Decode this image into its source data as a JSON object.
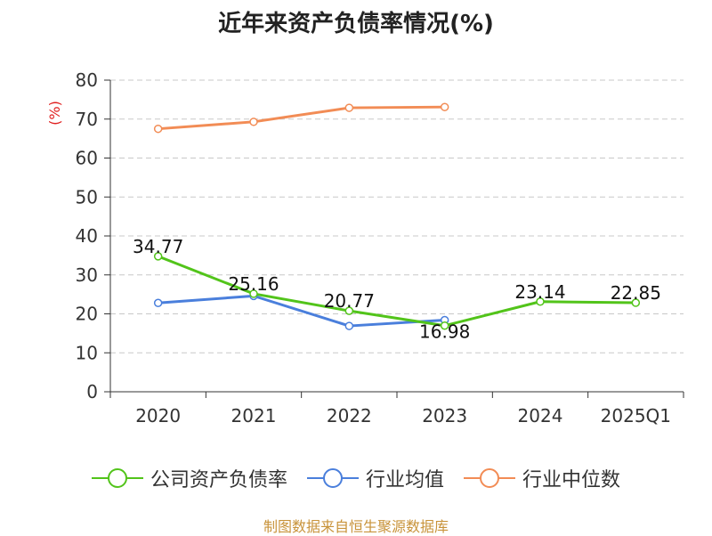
{
  "chart_data": {
    "type": "line",
    "title": "近年来资产负债率情况(%)",
    "ylabel": "(%)",
    "xlabel": "",
    "categories": [
      "2020",
      "2021",
      "2022",
      "2023",
      "2024",
      "2025Q1"
    ],
    "ylim": [
      0,
      80
    ],
    "yticks": [
      "0",
      "10",
      "20",
      "30",
      "40",
      "50",
      "60",
      "70",
      "80"
    ],
    "grid": true,
    "legend_position": "bottom",
    "series": [
      {
        "name": "公司资产负债率",
        "color": "#52c41a",
        "values": [
          34.77,
          25.16,
          20.77,
          16.98,
          23.14,
          22.85
        ],
        "labels": [
          "34.77",
          "25.16",
          "20.77",
          "16.98",
          "23.14",
          "22.85"
        ]
      },
      {
        "name": "行业均值",
        "color": "#4a7fdc",
        "values": [
          22.8,
          24.6,
          16.9,
          18.4,
          null,
          null
        ]
      },
      {
        "name": "行业中位数",
        "color": "#f28c55",
        "values": [
          67.5,
          69.3,
          72.9,
          73.1,
          null,
          null
        ]
      }
    ]
  },
  "source": "制图数据来自恒生聚源数据库"
}
